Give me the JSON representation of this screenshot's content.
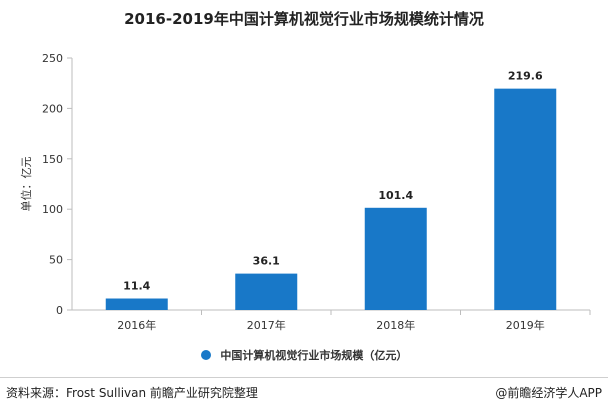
{
  "chart_data": {
    "type": "bar",
    "title": "2016-2019年中国计算机视觉行业市场规模统计情况",
    "ylabel": "单位：亿元",
    "xlabel": "",
    "categories": [
      "2016年",
      "2017年",
      "2018年",
      "2019年"
    ],
    "series": [
      {
        "name": "中国计算机视觉行业市场规模（亿元）",
        "values": [
          11.4,
          36.1,
          101.4,
          219.6
        ]
      }
    ],
    "value_labels": [
      "11.4",
      "36.1",
      "101.4",
      "219.6"
    ],
    "ylim": [
      0,
      250
    ],
    "yticks": [
      0,
      50,
      100,
      150,
      200,
      250
    ],
    "ytick_labels": [
      "0",
      "50",
      "100",
      "150",
      "200",
      "250"
    ],
    "grid": false,
    "legend_position": "bottom",
    "colors": {
      "bar": "#1878c8",
      "axis": "#bdbdbd",
      "text": "#333333"
    }
  },
  "footer": {
    "source": "资料来源：Frost Sullivan 前瞻产业研究院整理",
    "credit": "@前瞻经济学人APP"
  }
}
